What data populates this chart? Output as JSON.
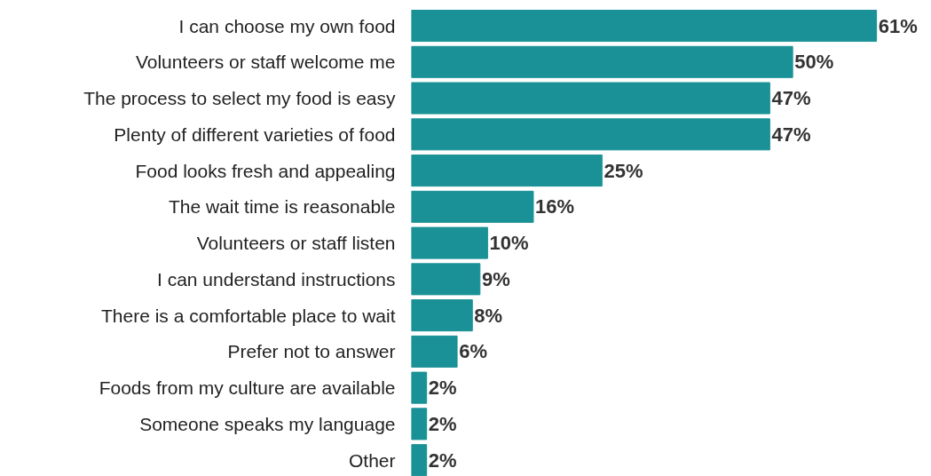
{
  "chart_data": {
    "type": "bar",
    "orientation": "horizontal",
    "categories": [
      "I can choose my own food",
      "Volunteers or staff welcome me",
      "The process to select my food is easy",
      "Plenty of different varieties of food",
      "Food looks fresh and appealing",
      "The wait time is reasonable",
      "Volunteers or staff listen",
      "I can understand instructions",
      "There is a comfortable place to wait",
      "Prefer not to answer",
      "Foods from my culture are available",
      "Someone speaks my language",
      "Other"
    ],
    "values": [
      61,
      50,
      47,
      47,
      25,
      16,
      10,
      9,
      8,
      6,
      2,
      2,
      2
    ],
    "value_labels": [
      "61%",
      "50%",
      "47%",
      "47%",
      "25%",
      "16%",
      "10%",
      "9%",
      "8%",
      "6%",
      "2%",
      "2%",
      "2%"
    ],
    "color": "#1a9196",
    "grid": false,
    "tick_labels": "y"
  }
}
